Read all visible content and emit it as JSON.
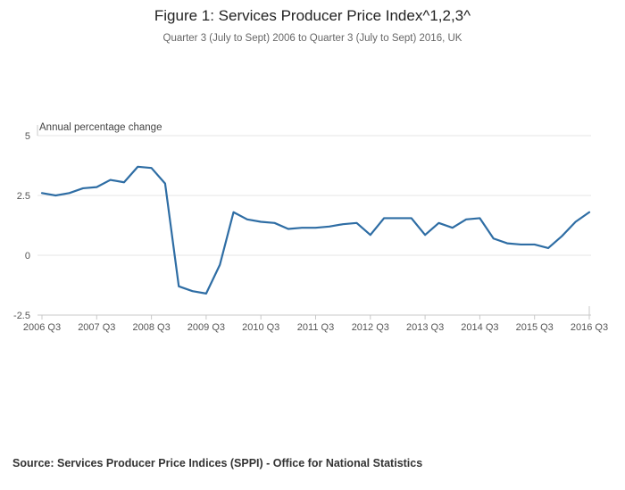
{
  "header": {
    "title": "Figure 1: Services Producer Price Index^1,2,3^",
    "subtitle": "Quarter 3 (July to Sept) 2006 to Quarter 3 (July to Sept) 2016, UK"
  },
  "footer": {
    "source": "Source: Services Producer Price Indices (SPPI) - Office for National Statistics"
  },
  "chart_data": {
    "type": "line",
    "title": "Figure 1: Services Producer Price Index^1,2,3^",
    "subtitle": "Quarter 3 (July to Sept) 2006 to Quarter 3 (July to Sept) 2016, UK",
    "axis_label": "Annual percentage change",
    "xlabel": "",
    "ylabel": "Annual percentage change",
    "ylim": [
      -2.5,
      5
    ],
    "yticks": [
      5,
      2.5,
      0,
      -2.5
    ],
    "x_tick_every": 4,
    "x_tick_labels": [
      "2006 Q3",
      "2007 Q3",
      "2008 Q3",
      "2009 Q3",
      "2010 Q3",
      "2011 Q3",
      "2012 Q3",
      "2013 Q3",
      "2014 Q3",
      "2015 Q3",
      "2016 Q3"
    ],
    "grid": "horizontal-only",
    "legend": "none",
    "line_color": "#2e6da4",
    "grid_color": "#e4e4e4",
    "axis_color": "#c8c8c8",
    "tick_text_color": "#555555",
    "categories": [
      "2006 Q3",
      "2006 Q4",
      "2007 Q1",
      "2007 Q2",
      "2007 Q3",
      "2007 Q4",
      "2008 Q1",
      "2008 Q2",
      "2008 Q3",
      "2008 Q4",
      "2009 Q1",
      "2009 Q2",
      "2009 Q3",
      "2009 Q4",
      "2010 Q1",
      "2010 Q2",
      "2010 Q3",
      "2010 Q4",
      "2011 Q1",
      "2011 Q2",
      "2011 Q3",
      "2011 Q4",
      "2012 Q1",
      "2012 Q2",
      "2012 Q3",
      "2012 Q4",
      "2013 Q1",
      "2013 Q2",
      "2013 Q3",
      "2013 Q4",
      "2014 Q1",
      "2014 Q2",
      "2014 Q3",
      "2014 Q4",
      "2015 Q1",
      "2015 Q2",
      "2015 Q3",
      "2015 Q4",
      "2016 Q1",
      "2016 Q2",
      "2016 Q3"
    ],
    "series": [
      {
        "name": "Services Producer Price Index, annual percentage change",
        "values": [
          2.6,
          2.5,
          2.6,
          2.8,
          2.85,
          3.15,
          3.05,
          3.7,
          3.65,
          3.0,
          -1.3,
          -1.5,
          -1.6,
          -0.4,
          1.8,
          1.5,
          1.4,
          1.35,
          1.1,
          1.15,
          1.15,
          1.2,
          1.3,
          1.35,
          0.85,
          1.55,
          1.55,
          1.55,
          0.85,
          1.35,
          1.15,
          1.5,
          1.55,
          0.7,
          0.5,
          0.45,
          0.45,
          0.3,
          0.8,
          1.4,
          1.8
        ]
      }
    ]
  }
}
